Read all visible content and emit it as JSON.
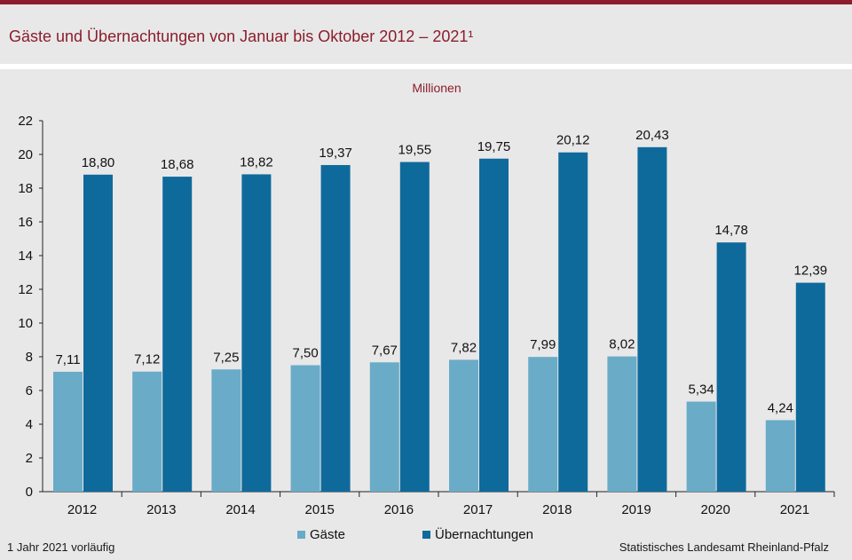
{
  "header": {
    "title": "Gäste und Übernachtungen von Januar bis Oktober 2012 – 2021¹"
  },
  "footer": {
    "footnote": "1 Jahr 2021 vorläufig",
    "source": "Statistisches Landesamt  Rheinland-Pfalz"
  },
  "colors": {
    "accent": "#8b1d2c",
    "gaeste": "#6aabc8",
    "uebernachtungen": "#0f6a9c",
    "background": "#e8e8e8"
  },
  "chart_data": {
    "type": "bar",
    "unit_label": "Millionen",
    "categories": [
      "2012",
      "2013",
      "2014",
      "2015",
      "2016",
      "2017",
      "2018",
      "2019",
      "2020",
      "2021"
    ],
    "series": [
      {
        "name": "Gäste",
        "values": [
          7.11,
          7.12,
          7.25,
          7.5,
          7.67,
          7.82,
          7.99,
          8.02,
          5.34,
          4.24
        ],
        "labels": [
          "7,11",
          "7,12",
          "7,25",
          "7,50",
          "7,67",
          "7,82",
          "7,99",
          "8,02",
          "5,34",
          "4,24"
        ]
      },
      {
        "name": "Übernachtungen",
        "values": [
          18.8,
          18.68,
          18.82,
          19.37,
          19.55,
          19.75,
          20.12,
          20.43,
          14.78,
          12.39
        ],
        "labels": [
          "18,80",
          "18,68",
          "18,82",
          "19,37",
          "19,55",
          "19,75",
          "20,12",
          "20,43",
          "14,78",
          "12,39"
        ]
      }
    ],
    "ylim": [
      0,
      22
    ],
    "yticks": [
      "0",
      "2",
      "4",
      "6",
      "8",
      "10",
      "12",
      "14",
      "16",
      "18",
      "20",
      "22"
    ],
    "grid": false,
    "legend_position": "bottom"
  }
}
